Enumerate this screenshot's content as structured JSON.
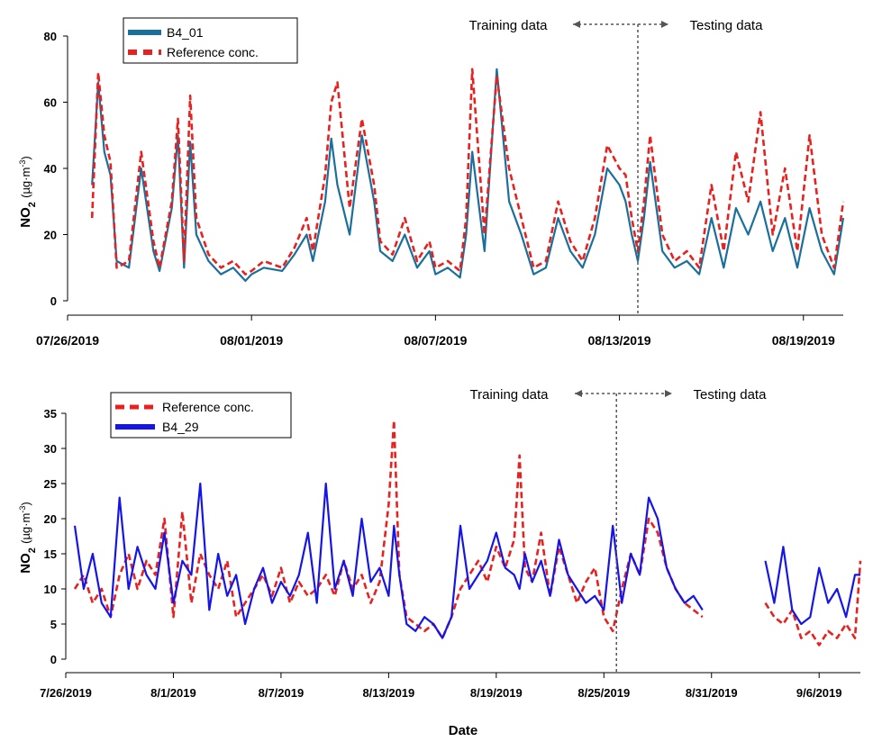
{
  "chart_data": [
    {
      "type": "line",
      "panel": "top",
      "ylabel_main": "NO",
      "ylabel_sub": "2",
      "ylabel_units": "(µg·m",
      "ylabel_exp": "-3",
      "ylabel_close": ")",
      "xlabel": "",
      "ylim": [
        0,
        80
      ],
      "xlim": [
        0.0,
        25.3
      ],
      "yticks": [
        0,
        20,
        40,
        60,
        80
      ],
      "xticks": [
        {
          "pos": 0,
          "label": "07/26/2019"
        },
        {
          "pos": 6,
          "label": "08/01/2019"
        },
        {
          "pos": 12,
          "label": "08/07/2019"
        },
        {
          "pos": 18,
          "label": "08/13/2019"
        },
        {
          "pos": 24,
          "label": "08/19/2019"
        }
      ],
      "split_day": 18.6,
      "annotation_left": "Training data",
      "annotation_right": "Testing data",
      "legend_position": "top-left",
      "series": [
        {
          "name": "B4_01",
          "style": "solid",
          "color": "#1a6f9c",
          "x": [
            0.8,
            1.0,
            1.2,
            1.4,
            1.6,
            2.0,
            2.4,
            2.8,
            3.0,
            3.4,
            3.6,
            3.8,
            4.0,
            4.2,
            4.6,
            5.0,
            5.4,
            5.8,
            6.0,
            6.4,
            7.0,
            7.4,
            7.8,
            8.0,
            8.4,
            8.6,
            8.8,
            9.2,
            9.6,
            10.0,
            10.2,
            10.6,
            11.0,
            11.4,
            11.8,
            12.0,
            12.4,
            12.8,
            13.0,
            13.2,
            13.6,
            14.0,
            14.4,
            14.8,
            15.2,
            15.6,
            16.0,
            16.4,
            16.8,
            17.2,
            17.6,
            18.0,
            18.2,
            18.4,
            18.6,
            18.8,
            19.0,
            19.4,
            19.8,
            20.2,
            20.6,
            21.0,
            21.4,
            21.8,
            22.2,
            22.6,
            23.0,
            23.4,
            23.8,
            24.2,
            24.6,
            25.0,
            25.3
          ],
          "y": [
            35,
            66,
            45,
            38,
            12,
            10,
            40,
            15,
            9,
            28,
            50,
            10,
            48,
            20,
            12,
            8,
            10,
            6,
            8,
            10,
            9,
            14,
            20,
            12,
            30,
            49,
            35,
            20,
            50,
            30,
            15,
            12,
            20,
            10,
            15,
            8,
            10,
            7,
            20,
            45,
            15,
            70,
            30,
            20,
            8,
            10,
            25,
            15,
            10,
            20,
            40,
            35,
            30,
            20,
            12,
            25,
            42,
            15,
            10,
            12,
            8,
            25,
            10,
            28,
            20,
            30,
            15,
            25,
            10,
            28,
            15,
            8,
            25
          ]
        },
        {
          "name": "Reference conc.",
          "style": "dashed",
          "color": "#e8211f",
          "x": [
            0.8,
            1.0,
            1.2,
            1.4,
            1.6,
            2.0,
            2.4,
            2.8,
            3.0,
            3.4,
            3.6,
            3.8,
            4.0,
            4.2,
            4.6,
            5.0,
            5.4,
            5.8,
            6.0,
            6.4,
            7.0,
            7.4,
            7.8,
            8.0,
            8.4,
            8.6,
            8.8,
            9.2,
            9.6,
            10.0,
            10.2,
            10.6,
            11.0,
            11.4,
            11.8,
            12.0,
            12.4,
            12.8,
            13.0,
            13.2,
            13.6,
            14.0,
            14.4,
            14.8,
            15.2,
            15.6,
            16.0,
            16.4,
            16.8,
            17.2,
            17.6,
            18.0,
            18.2,
            18.4,
            18.6,
            18.8,
            19.0,
            19.4,
            19.8,
            20.2,
            20.6,
            21.0,
            21.4,
            21.8,
            22.2,
            22.6,
            23.0,
            23.4,
            23.8,
            24.2,
            24.6,
            25.0,
            25.3
          ],
          "y": [
            25,
            69,
            50,
            42,
            10,
            12,
            45,
            18,
            10,
            30,
            55,
            12,
            62,
            25,
            14,
            10,
            12,
            8,
            9,
            12,
            10,
            16,
            25,
            15,
            38,
            60,
            66,
            28,
            55,
            35,
            18,
            14,
            25,
            12,
            18,
            10,
            12,
            9,
            25,
            70,
            20,
            68,
            40,
            25,
            10,
            12,
            30,
            18,
            12,
            25,
            47,
            40,
            38,
            25,
            15,
            30,
            50,
            20,
            12,
            15,
            10,
            35,
            15,
            45,
            30,
            57,
            20,
            40,
            15,
            50,
            20,
            10,
            30
          ]
        }
      ]
    },
    {
      "type": "line",
      "panel": "bottom",
      "ylabel_main": "NO",
      "ylabel_sub": "2",
      "ylabel_units": "(µg·m",
      "ylabel_exp": "-3",
      "ylabel_close": ")",
      "xlabel": "Date",
      "ylim": [
        0,
        35
      ],
      "xlim": [
        0.0,
        44.3
      ],
      "yticks": [
        0,
        5,
        10,
        15,
        20,
        25,
        30,
        35
      ],
      "xticks": [
        {
          "pos": 0,
          "label": "7/26/2019"
        },
        {
          "pos": 6,
          "label": "8/1/2019"
        },
        {
          "pos": 12,
          "label": "8/7/2019"
        },
        {
          "pos": 18,
          "label": "8/13/2019"
        },
        {
          "pos": 24,
          "label": "8/19/2019"
        },
        {
          "pos": 30,
          "label": "8/25/2019"
        },
        {
          "pos": 36,
          "label": "8/31/2019"
        },
        {
          "pos": 42,
          "label": "9/6/2019"
        }
      ],
      "split_day": 30.7,
      "annotation_left": "Training data",
      "annotation_right": "Testing data",
      "legend_position": "top-left",
      "series": [
        {
          "name": "Reference conc.",
          "style": "dashed",
          "color": "#e8211f",
          "x": [
            0.5,
            1.0,
            1.5,
            2.0,
            2.5,
            3.0,
            3.5,
            4.0,
            4.5,
            5.0,
            5.5,
            6.0,
            6.5,
            7.0,
            7.5,
            8.0,
            8.5,
            9.0,
            9.5,
            10.0,
            10.5,
            11.0,
            11.5,
            12.0,
            12.5,
            13.0,
            13.5,
            14.0,
            14.5,
            15.0,
            15.5,
            16.0,
            16.5,
            17.0,
            17.5,
            18.0,
            18.3,
            18.6,
            19.0,
            19.5,
            20.0,
            20.5,
            21.0,
            21.5,
            22.0,
            22.5,
            23.0,
            23.5,
            24.0,
            24.5,
            25.0,
            25.3,
            25.6,
            26.0,
            26.5,
            27.0,
            27.5,
            28.0,
            28.5,
            29.0,
            29.5,
            30.0,
            30.5,
            31.0,
            31.5,
            32.0,
            32.5,
            33.0,
            33.5,
            34.0,
            34.5,
            35.0,
            35.5,
            null,
            39.0,
            39.5,
            40.0,
            40.5,
            41.0,
            41.5,
            42.0,
            42.5,
            43.0,
            43.5,
            44.0,
            44.3
          ],
          "y": [
            10,
            12,
            8,
            10,
            6,
            12,
            15,
            10,
            14,
            12,
            20,
            6,
            21,
            8,
            15,
            12,
            10,
            14,
            6,
            8,
            10,
            12,
            9,
            13,
            8,
            11,
            9,
            10,
            12,
            9,
            14,
            10,
            12,
            8,
            11,
            22,
            34,
            12,
            6,
            5,
            4,
            5,
            3,
            6,
            10,
            12,
            14,
            11,
            16,
            13,
            17,
            29,
            13,
            11,
            18,
            9,
            16,
            12,
            8,
            11,
            13,
            6,
            4,
            10,
            15,
            12,
            20,
            18,
            13,
            10,
            8,
            7,
            6,
            null,
            8,
            6,
            5,
            7,
            3,
            4,
            2,
            4,
            3,
            5,
            3,
            14
          ]
        },
        {
          "name": "B4_29",
          "style": "solid",
          "color": "#1515ea",
          "x": [
            0.5,
            1.0,
            1.5,
            2.0,
            2.5,
            3.0,
            3.5,
            4.0,
            4.5,
            5.0,
            5.5,
            6.0,
            6.5,
            7.0,
            7.5,
            8.0,
            8.5,
            9.0,
            9.5,
            10.0,
            10.5,
            11.0,
            11.5,
            12.0,
            12.5,
            13.0,
            13.5,
            14.0,
            14.5,
            15.0,
            15.5,
            16.0,
            16.5,
            17.0,
            17.5,
            18.0,
            18.3,
            18.6,
            19.0,
            19.5,
            20.0,
            20.5,
            21.0,
            21.5,
            22.0,
            22.5,
            23.0,
            23.5,
            24.0,
            24.5,
            25.0,
            25.3,
            25.6,
            26.0,
            26.5,
            27.0,
            27.5,
            28.0,
            28.5,
            29.0,
            29.5,
            30.0,
            30.5,
            31.0,
            31.5,
            32.0,
            32.5,
            33.0,
            33.5,
            34.0,
            34.5,
            35.0,
            35.5,
            null,
            39.0,
            39.5,
            40.0,
            40.5,
            41.0,
            41.5,
            42.0,
            42.5,
            43.0,
            43.5,
            44.0,
            44.3
          ],
          "y": [
            19,
            10,
            15,
            8,
            6,
            23,
            10,
            16,
            12,
            10,
            18,
            8,
            14,
            12,
            25,
            7,
            15,
            9,
            12,
            5,
            10,
            13,
            8,
            11,
            9,
            12,
            18,
            8,
            25,
            10,
            14,
            9,
            20,
            11,
            13,
            9,
            19,
            12,
            5,
            4,
            6,
            5,
            3,
            6,
            19,
            10,
            12,
            14,
            18,
            13,
            12,
            10,
            15,
            11,
            14,
            9,
            17,
            12,
            10,
            8,
            9,
            7,
            19,
            8,
            15,
            12,
            23,
            20,
            13,
            10,
            8,
            9,
            7,
            null,
            14,
            8,
            16,
            7,
            5,
            6,
            13,
            8,
            10,
            6,
            12,
            12
          ]
        }
      ]
    }
  ]
}
